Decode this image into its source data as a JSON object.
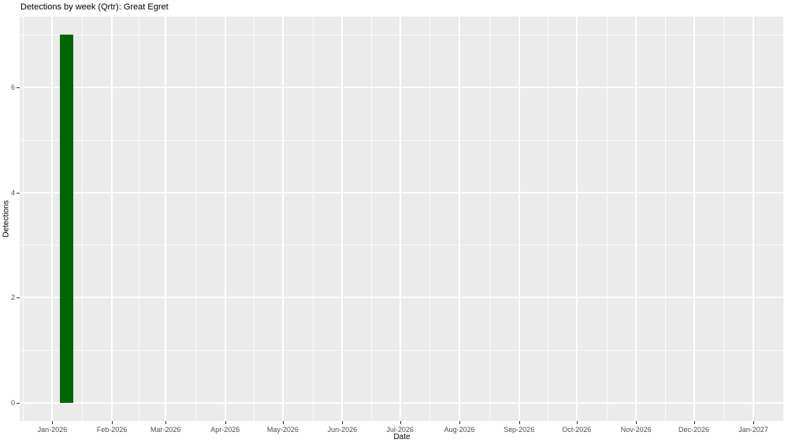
{
  "page": {
    "title": "Detections by week (Qrtr): Great Egret"
  },
  "chart_data": {
    "type": "bar",
    "title": "Detections by week (Qrtr): Great Egret",
    "xlabel": "Date",
    "ylabel": "Detections",
    "legend": "none",
    "grid": "major-and-minor-white-on-grey",
    "xlim": [
      "2025-12-15",
      "2027-01-17"
    ],
    "ylim": [
      -0.35,
      7.35
    ],
    "y_ticks": [
      0,
      2,
      4,
      6
    ],
    "y_minor_ticks": [
      1,
      3,
      5,
      7
    ],
    "x_ticks": [
      {
        "date": "2026-01-01",
        "label": "Jan-2026"
      },
      {
        "date": "2026-02-01",
        "label": "Feb-2026"
      },
      {
        "date": "2026-03-01",
        "label": "Mar-2026"
      },
      {
        "date": "2026-04-01",
        "label": "Apr-2026"
      },
      {
        "date": "2026-05-01",
        "label": "May-2026"
      },
      {
        "date": "2026-06-01",
        "label": "Jun-2026"
      },
      {
        "date": "2026-07-01",
        "label": "Jul-2026"
      },
      {
        "date": "2026-08-01",
        "label": "Aug-2026"
      },
      {
        "date": "2026-09-01",
        "label": "Sep-2026"
      },
      {
        "date": "2026-10-01",
        "label": "Oct-2026"
      },
      {
        "date": "2026-11-01",
        "label": "Nov-2026"
      },
      {
        "date": "2026-12-01",
        "label": "Dec-2026"
      },
      {
        "date": "2027-01-01",
        "label": "Jan-2027"
      }
    ],
    "bars": [
      {
        "week_start": "2026-01-05",
        "week_end": "2026-01-12",
        "value": 7
      }
    ],
    "colors": {
      "bar": "#006400",
      "panel_background": "#EBEBEB",
      "gridline": "#FFFFFF",
      "axis_text": "#4D4D4D",
      "title_text": "#000000",
      "tick_mark": "#333333"
    }
  }
}
